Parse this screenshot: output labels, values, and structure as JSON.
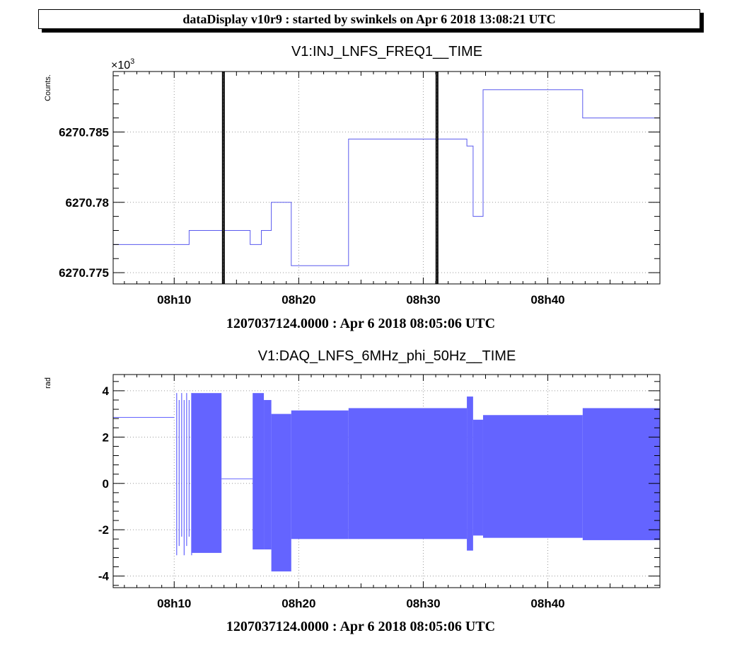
{
  "header": {
    "text": "dataDisplay v10r9 : started by swinkels on Apr  6 2018 13:08:21 UTC"
  },
  "chart_data": [
    {
      "type": "line",
      "title": "V1:INJ_LNFS_FREQ1__TIME",
      "ylabel": "Counts.",
      "y_multiplier": "×10",
      "y_multiplier_exp": "3",
      "xlabel": "1207037124.0000 : Apr  6 2018 08:05:06 UTC",
      "x_tick_labels": [
        "08h10",
        "08h20",
        "08h30",
        "08h40"
      ],
      "x_ticks_min": [
        10,
        20,
        30,
        40
      ],
      "xlim_min": [
        5.1,
        49
      ],
      "y_tick_labels": [
        "6270.775",
        "6270.78",
        "6270.785"
      ],
      "y_ticks": [
        6270.775,
        6270.78,
        6270.785
      ],
      "ylim": [
        6270.7742,
        6270.7893
      ],
      "grid": true,
      "series_color": "#5a5aee",
      "series": [
        {
          "x_min": [
            5.1,
            11.2,
            11.2,
            16.1,
            16.1,
            17.0,
            17.0,
            17.8,
            17.8,
            19.4,
            19.4,
            24.0,
            24.0,
            33.5,
            33.5,
            34.0,
            34.0,
            34.8,
            34.8,
            42.8,
            42.8,
            49.0
          ],
          "y": [
            6270.777,
            6270.777,
            6270.778,
            6270.778,
            6270.777,
            6270.777,
            6270.778,
            6270.778,
            6270.78,
            6270.78,
            6270.7755,
            6270.7755,
            6270.7845,
            6270.7845,
            6270.784,
            6270.784,
            6270.779,
            6270.779,
            6270.788,
            6270.788,
            6270.786,
            6270.786
          ]
        }
      ],
      "markers_min": [
        13.95,
        31.1
      ]
    },
    {
      "type": "area",
      "title": "V1:DAQ_LNFS_6MHz_phi_50Hz__TIME",
      "ylabel": "rad",
      "xlabel": "1207037124.0000 : Apr  6 2018 08:05:06 UTC",
      "x_tick_labels": [
        "08h10",
        "08h20",
        "08h30",
        "08h40"
      ],
      "x_ticks_min": [
        10,
        20,
        30,
        40
      ],
      "xlim_min": [
        5.1,
        49
      ],
      "y_tick_labels": [
        "-4",
        "-2",
        "0",
        "2",
        "4"
      ],
      "y_ticks": [
        -4,
        -2,
        0,
        2,
        4
      ],
      "ylim": [
        -4.5,
        4.7
      ],
      "grid": true,
      "series_color": "#6464ff",
      "flat_segments": [
        {
          "x_min": [
            5.1,
            10.0
          ],
          "y": 2.85
        },
        {
          "x_min": [
            13.8,
            16.3
          ],
          "y": 0.2
        }
      ],
      "burst_spikes_min": [
        10.2,
        10.4,
        10.6,
        10.8,
        11.0,
        11.2,
        11.4
      ],
      "burst_spike_range": [
        -3.1,
        3.9
      ],
      "bands": [
        {
          "x_min": [
            11.4,
            13.8
          ],
          "ymin": -3.0,
          "ymax": 3.9
        },
        {
          "x_min": [
            16.3,
            17.2
          ],
          "ymin": -2.85,
          "ymax": 3.9
        },
        {
          "x_min": [
            17.2,
            17.8
          ],
          "ymin": -2.85,
          "ymax": 3.6
        },
        {
          "x_min": [
            17.8,
            19.4
          ],
          "ymin": -3.8,
          "ymax": 3.0
        },
        {
          "x_min": [
            19.4,
            24.0
          ],
          "ymin": -2.4,
          "ymax": 3.15
        },
        {
          "x_min": [
            24.0,
            33.5
          ],
          "ymin": -2.4,
          "ymax": 3.25
        },
        {
          "x_min": [
            33.5,
            34.0
          ],
          "ymin": -2.9,
          "ymax": 3.75
        },
        {
          "x_min": [
            34.0,
            34.8
          ],
          "ymin": -2.25,
          "ymax": 2.75
        },
        {
          "x_min": [
            34.8,
            42.8
          ],
          "ymin": -2.35,
          "ymax": 2.95
        },
        {
          "x_min": [
            42.8,
            49.0
          ],
          "ymin": -2.45,
          "ymax": 3.25
        }
      ]
    }
  ]
}
